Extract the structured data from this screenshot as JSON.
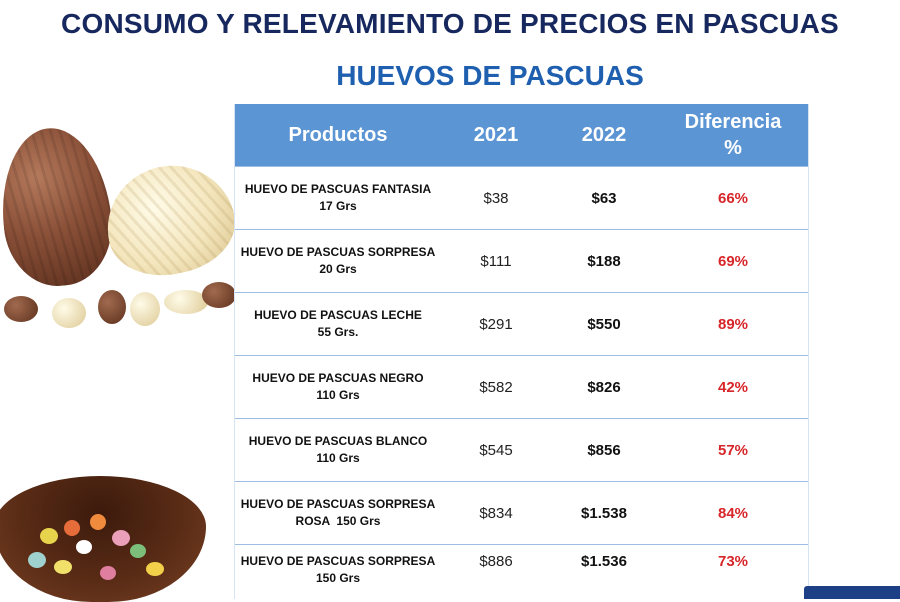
{
  "title": "CONSUMO Y RELEVAMIENTO DE PRECIOS EN PASCUAS",
  "subtitle": "HUEVOS DE PASCUAS",
  "table": {
    "headers": {
      "product": "Productos",
      "y2021": "2021",
      "y2022": "2022",
      "diff_line1": "Diferencia",
      "diff_line2": "%"
    },
    "rows": [
      {
        "name": "HUEVO DE PASCUAS FANTASIA",
        "size": "17 Grs",
        "p2021": "$38",
        "p2022": "$63",
        "diff": "66%"
      },
      {
        "name": "HUEVO DE PASCUAS SORPRESA",
        "size": "20 Grs",
        "p2021": "$111",
        "p2022": "$188",
        "diff": "69%"
      },
      {
        "name": "HUEVO DE PASCUAS LECHE",
        "size": "55 Grs.",
        "p2021": "$291",
        "p2022": "$550",
        "diff": "89%"
      },
      {
        "name": "HUEVO DE PASCUAS NEGRO",
        "size": "110 Grs",
        "p2021": "$582",
        "p2022": "$826",
        "diff": "42%"
      },
      {
        "name": "HUEVO DE PASCUAS BLANCO",
        "size": "110 Grs",
        "p2021": "$545",
        "p2022": "$856",
        "diff": "57%"
      },
      {
        "name": "HUEVO DE PASCUAS SORPRESA",
        "size": "ROSA  150 Grs",
        "p2021": "$834",
        "p2022": "$1.538",
        "diff": "84%"
      },
      {
        "name": "HUEVO DE PASCUAS SORPRESA",
        "size": "150 Grs",
        "p2021": "$886",
        "p2022": "$1.536",
        "diff": "73%"
      }
    ]
  },
  "colors": {
    "title": "#17285e",
    "subtitle": "#1f5fb0",
    "header_bg": "#5c95d4",
    "diff_text": "#d7262a"
  }
}
